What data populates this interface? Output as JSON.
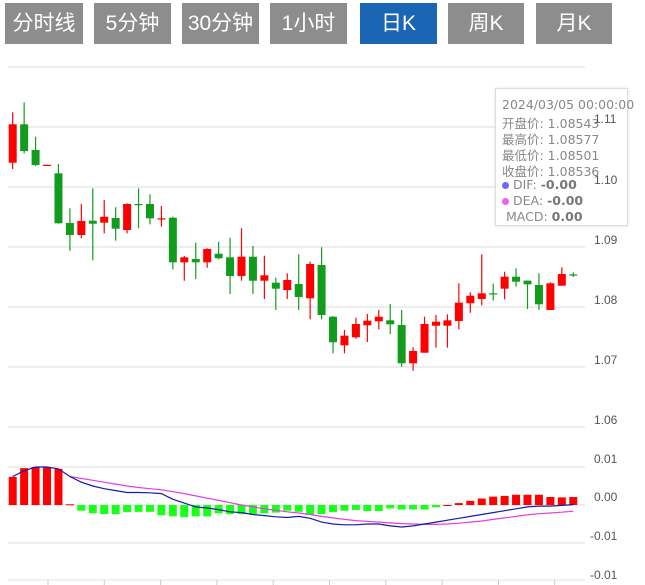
{
  "tabs": [
    {
      "label": "分时线",
      "active": false
    },
    {
      "label": "5分钟",
      "active": false
    },
    {
      "label": "30分钟",
      "active": false
    },
    {
      "label": "1小时",
      "active": false
    },
    {
      "label": "日K",
      "active": true
    },
    {
      "label": "周K",
      "active": false
    },
    {
      "label": "月K",
      "active": false
    }
  ],
  "colors": {
    "up": "#ff0000",
    "down": "#129c1e",
    "macd_up": "#ff0000",
    "macd_down": "#1aff1a",
    "dif": "#1a1aa6",
    "dea": "#e040e0",
    "active_tab": "#1a66b5",
    "tab": "#8d8d8d"
  },
  "tooltip": {
    "date": "2024/03/05 00:00:00",
    "open": "开盘价: 1.08543",
    "high": "最高价: 1.08577",
    "low": "最低价: 1.08501",
    "close": "收盘价: 1.08536",
    "dif_label": "DIF:",
    "dif_value": "-0.00",
    "dea_label": "DEA:",
    "dea_value": "-0.00",
    "macd_label": "MACD:",
    "macd_value": "0.00"
  },
  "chart_data": [
    {
      "type": "candlestick",
      "ylim": [
        1.05,
        1.12
      ],
      "ytick_labels": [
        "1.11",
        "1.10",
        "1.09",
        "1.08",
        "1.07",
        "1.06"
      ],
      "ohlc": [
        [
          1.10405,
          1.11245,
          1.103,
          1.11045
        ],
        [
          1.11045,
          1.1141,
          1.1056,
          1.106
        ],
        [
          1.10617,
          1.10838,
          1.1035,
          1.10367
        ],
        [
          1.1036,
          1.1037,
          1.1035,
          1.1037
        ],
        [
          1.10228,
          1.10383,
          1.0939,
          1.09395
        ],
        [
          1.094,
          1.09645,
          1.08938,
          1.092
        ],
        [
          1.092,
          1.09717,
          1.09145,
          1.09433
        ],
        [
          1.09438,
          1.09978,
          1.08778,
          1.09388
        ],
        [
          1.09405,
          1.09783,
          1.09228,
          1.09505
        ],
        [
          1.09483,
          1.09662,
          1.09105,
          1.09305
        ],
        [
          1.09283,
          1.09728,
          1.09228,
          1.09717
        ],
        [
          1.09717,
          1.09978,
          1.09312,
          1.097
        ],
        [
          1.09717,
          1.09878,
          1.09378,
          1.09478
        ],
        [
          1.09467,
          1.09683,
          1.09338,
          1.09478
        ],
        [
          1.09488,
          1.09505,
          1.08628,
          1.08745
        ],
        [
          1.08745,
          1.0885,
          1.08438,
          1.08828
        ],
        [
          1.088,
          1.09072,
          1.08467,
          1.08745
        ],
        [
          1.08745,
          1.08978,
          1.08655,
          1.08967
        ],
        [
          1.08888,
          1.09088,
          1.08795,
          1.08812
        ],
        [
          1.08828,
          1.09155,
          1.08217,
          1.08517
        ],
        [
          1.08517,
          1.09312,
          1.08438,
          1.08838
        ],
        [
          1.08838,
          1.09017,
          1.08217,
          1.08438
        ],
        [
          1.08438,
          1.08855,
          1.08133,
          1.08528
        ],
        [
          1.08405,
          1.08488,
          1.0795,
          1.08305
        ],
        [
          1.08283,
          1.08562,
          1.08133,
          1.0845
        ],
        [
          1.08383,
          1.08878,
          1.0795,
          1.08167
        ],
        [
          1.08145,
          1.08755,
          1.07795,
          1.08717
        ],
        [
          1.087,
          1.08995,
          1.07795,
          1.07867
        ],
        [
          1.07838,
          1.0785,
          1.07228,
          1.07412
        ],
        [
          1.07362,
          1.07617,
          1.07228,
          1.07522
        ],
        [
          1.07495,
          1.07822,
          1.07472,
          1.07717
        ],
        [
          1.07695,
          1.07883,
          1.07417,
          1.07772
        ],
        [
          1.07762,
          1.0795,
          1.07628,
          1.07838
        ],
        [
          1.07778,
          1.0805,
          1.0755,
          1.07712
        ],
        [
          1.077,
          1.0795,
          1.07005,
          1.07062
        ],
        [
          1.07062,
          1.07328,
          1.06938,
          1.07267
        ],
        [
          1.07238,
          1.07838,
          1.07238,
          1.07717
        ],
        [
          1.07688,
          1.07867,
          1.07322,
          1.07755
        ],
        [
          1.07688,
          1.07878,
          1.07322,
          1.07778
        ],
        [
          1.07767,
          1.08395,
          1.07628,
          1.08072
        ],
        [
          1.08062,
          1.08245,
          1.07905,
          1.08188
        ],
        [
          1.08133,
          1.08878,
          1.08028,
          1.08228
        ],
        [
          1.08228,
          1.08388,
          1.08105,
          1.08212
        ],
        [
          1.08305,
          1.08588,
          1.08128,
          1.08505
        ],
        [
          1.08505,
          1.08645,
          1.08338,
          1.08422
        ],
        [
          1.0844,
          1.0844,
          1.07967,
          1.08378
        ],
        [
          1.08367,
          1.08562,
          1.0795,
          1.08045
        ],
        [
          1.0795,
          1.08412,
          1.0795,
          1.08395
        ],
        [
          1.08355,
          1.08662,
          1.08355,
          1.0855
        ],
        [
          1.08543,
          1.08577,
          1.08501,
          1.08536
        ]
      ]
    },
    {
      "type": "macd",
      "ylim": [
        -0.02,
        0.0115
      ],
      "ytick_labels": [
        "0.01",
        "0.00",
        "-0.01",
        "-0.01"
      ],
      "hist": [
        0.0074,
        0.0097,
        0.01,
        0.01,
        0.0095,
        0.0002,
        -0.0015,
        -0.0022,
        -0.0024,
        -0.0024,
        -0.0019,
        -0.0018,
        -0.0018,
        -0.0027,
        -0.003,
        -0.0032,
        -0.003,
        -0.003,
        -0.0022,
        -0.0024,
        -0.0024,
        -0.0024,
        -0.0022,
        -0.002,
        -0.0015,
        -0.0018,
        -0.0026,
        -0.0024,
        -0.0019,
        -0.0015,
        -0.0013,
        -0.0016,
        -0.0016,
        -0.0009,
        -0.0012,
        -0.0012,
        -0.0012,
        -0.0006,
        0,
        0.0005,
        0.0011,
        0.0017,
        0.0022,
        0.0024,
        0.0027,
        0.0027,
        0.0027,
        0.0021,
        0.002,
        0.0021
      ],
      "dif": [
        0.0075,
        0.009,
        0.01,
        0.01,
        0.0095,
        0.0075,
        0.006,
        0.005,
        0.0043,
        0.0038,
        0.0033,
        0.0033,
        0.0032,
        0.003,
        0.0015,
        0.0005,
        -0.0005,
        -0.0008,
        -0.0012,
        -0.0018,
        -0.002,
        -0.0025,
        -0.0028,
        -0.0031,
        -0.0033,
        -0.003,
        -0.0035,
        -0.0045,
        -0.005,
        -0.0052,
        -0.0052,
        -0.005,
        -0.005,
        -0.0055,
        -0.0058,
        -0.0055,
        -0.005,
        -0.0045,
        -0.004,
        -0.0035,
        -0.003,
        -0.0025,
        -0.002,
        -0.0015,
        -0.001,
        -0.0005,
        -0.0003,
        -0.0003,
        -0.0001,
        0.0001
      ],
      "dea": [
        null,
        null,
        null,
        null,
        null,
        0.0075,
        0.007,
        0.0065,
        0.006,
        0.0055,
        0.005,
        0.0046,
        0.0043,
        0.004,
        0.0035,
        0.003,
        0.0024,
        0.0018,
        0.0012,
        0.0006,
        0.0,
        -0.0005,
        -0.001,
        -0.0014,
        -0.0018,
        -0.0021,
        -0.0025,
        -0.003,
        -0.0034,
        -0.0038,
        -0.0041,
        -0.0043,
        -0.0045,
        -0.0047,
        -0.0049,
        -0.005,
        -0.0051,
        -0.0051,
        -0.005,
        -0.0048,
        -0.0045,
        -0.0042,
        -0.0038,
        -0.0034,
        -0.003,
        -0.0026,
        -0.0023,
        -0.0021,
        -0.0019,
        -0.0016
      ]
    }
  ]
}
